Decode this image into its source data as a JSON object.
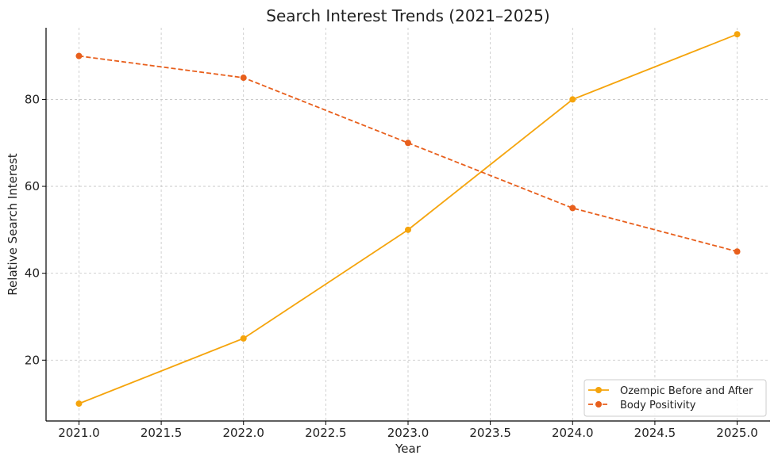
{
  "chart_data": {
    "type": "line",
    "title": "Search Interest Trends (2021–2025)",
    "xlabel": "Year",
    "ylabel": "Relative Search Interest",
    "xlim": [
      2020.8,
      2025.2
    ],
    "ylim": [
      6,
      96.5
    ],
    "xticks": [
      2021.0,
      2021.5,
      2022.0,
      2022.5,
      2023.0,
      2023.5,
      2024.0,
      2024.5,
      2025.0
    ],
    "xtick_labels": [
      "2021.0",
      "2021.5",
      "2022.0",
      "2022.5",
      "2023.0",
      "2023.5",
      "2024.0",
      "2024.5",
      "2025.0"
    ],
    "yticks": [
      20,
      40,
      60,
      80
    ],
    "ytick_labels": [
      "20",
      "40",
      "60",
      "80"
    ],
    "grid": true,
    "legend_position": "bottom-right",
    "series": [
      {
        "name": "Ozempic Before and After",
        "x": [
          2021,
          2022,
          2023,
          2024,
          2025
        ],
        "values": [
          10,
          25,
          50,
          80,
          95
        ],
        "color": "#f5a40c",
        "line_style": "solid",
        "marker": "circle"
      },
      {
        "name": "Body Positivity",
        "x": [
          2021,
          2022,
          2023,
          2024,
          2025
        ],
        "values": [
          90,
          85,
          70,
          55,
          45
        ],
        "color": "#e85f1c",
        "line_style": "dashed",
        "marker": "circle"
      }
    ]
  }
}
